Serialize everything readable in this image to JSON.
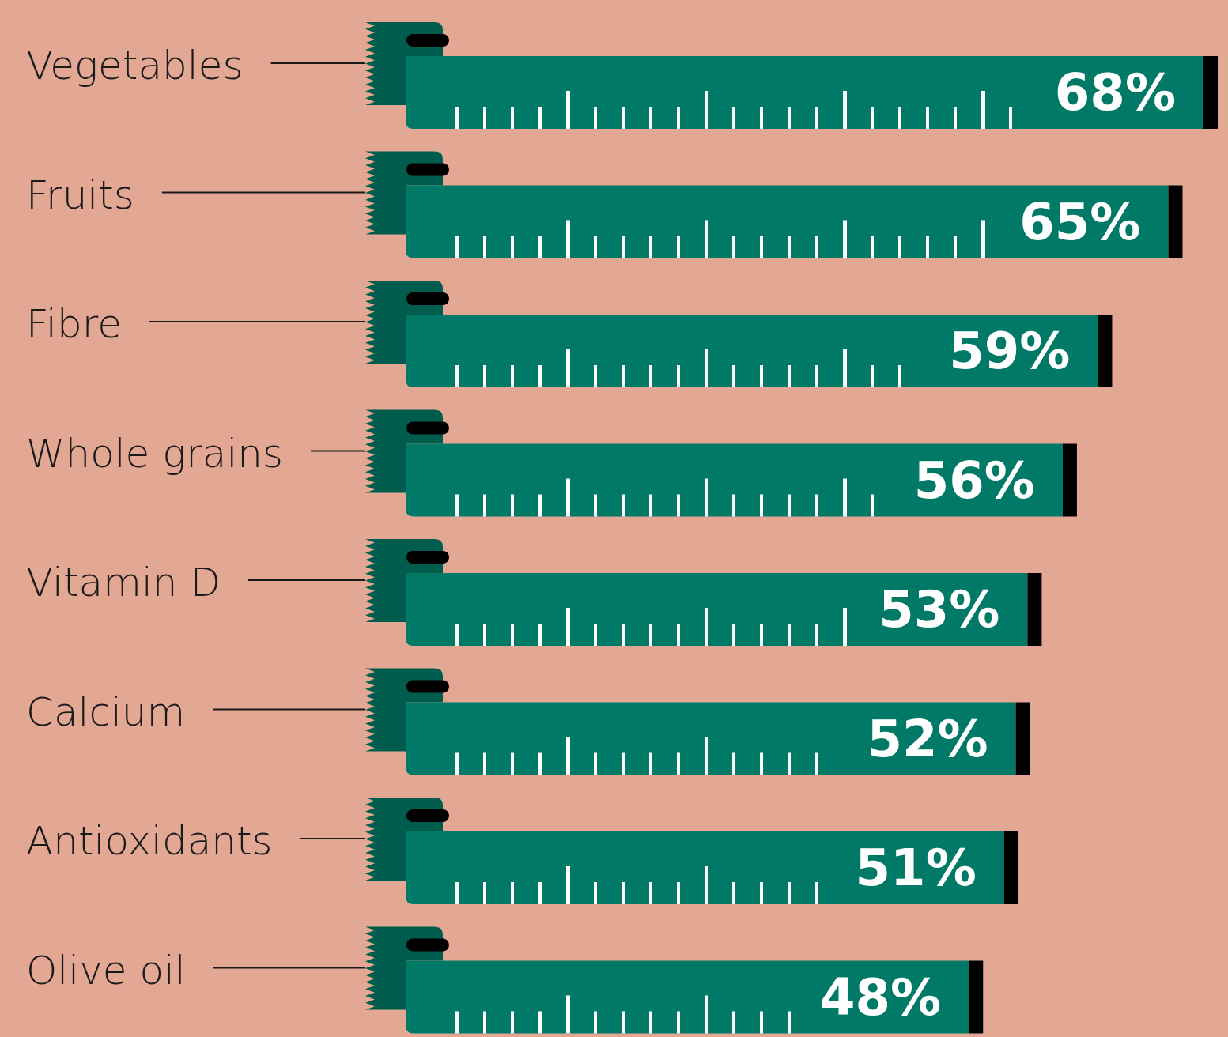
{
  "chart_data": {
    "type": "bar",
    "orientation": "horizontal",
    "categories": [
      "Vegetables",
      "Fruits",
      "Fibre",
      "Whole grains",
      "Vitamin D",
      "Calcium",
      "Antioxidants",
      "Olive oil"
    ],
    "values": [
      68,
      65,
      59,
      56,
      53,
      52,
      51,
      48
    ],
    "value_labels": [
      "68%",
      "65%",
      "59%",
      "56%",
      "53%",
      "52%",
      "51%",
      "48%"
    ],
    "color": "#007a67"
  }
}
